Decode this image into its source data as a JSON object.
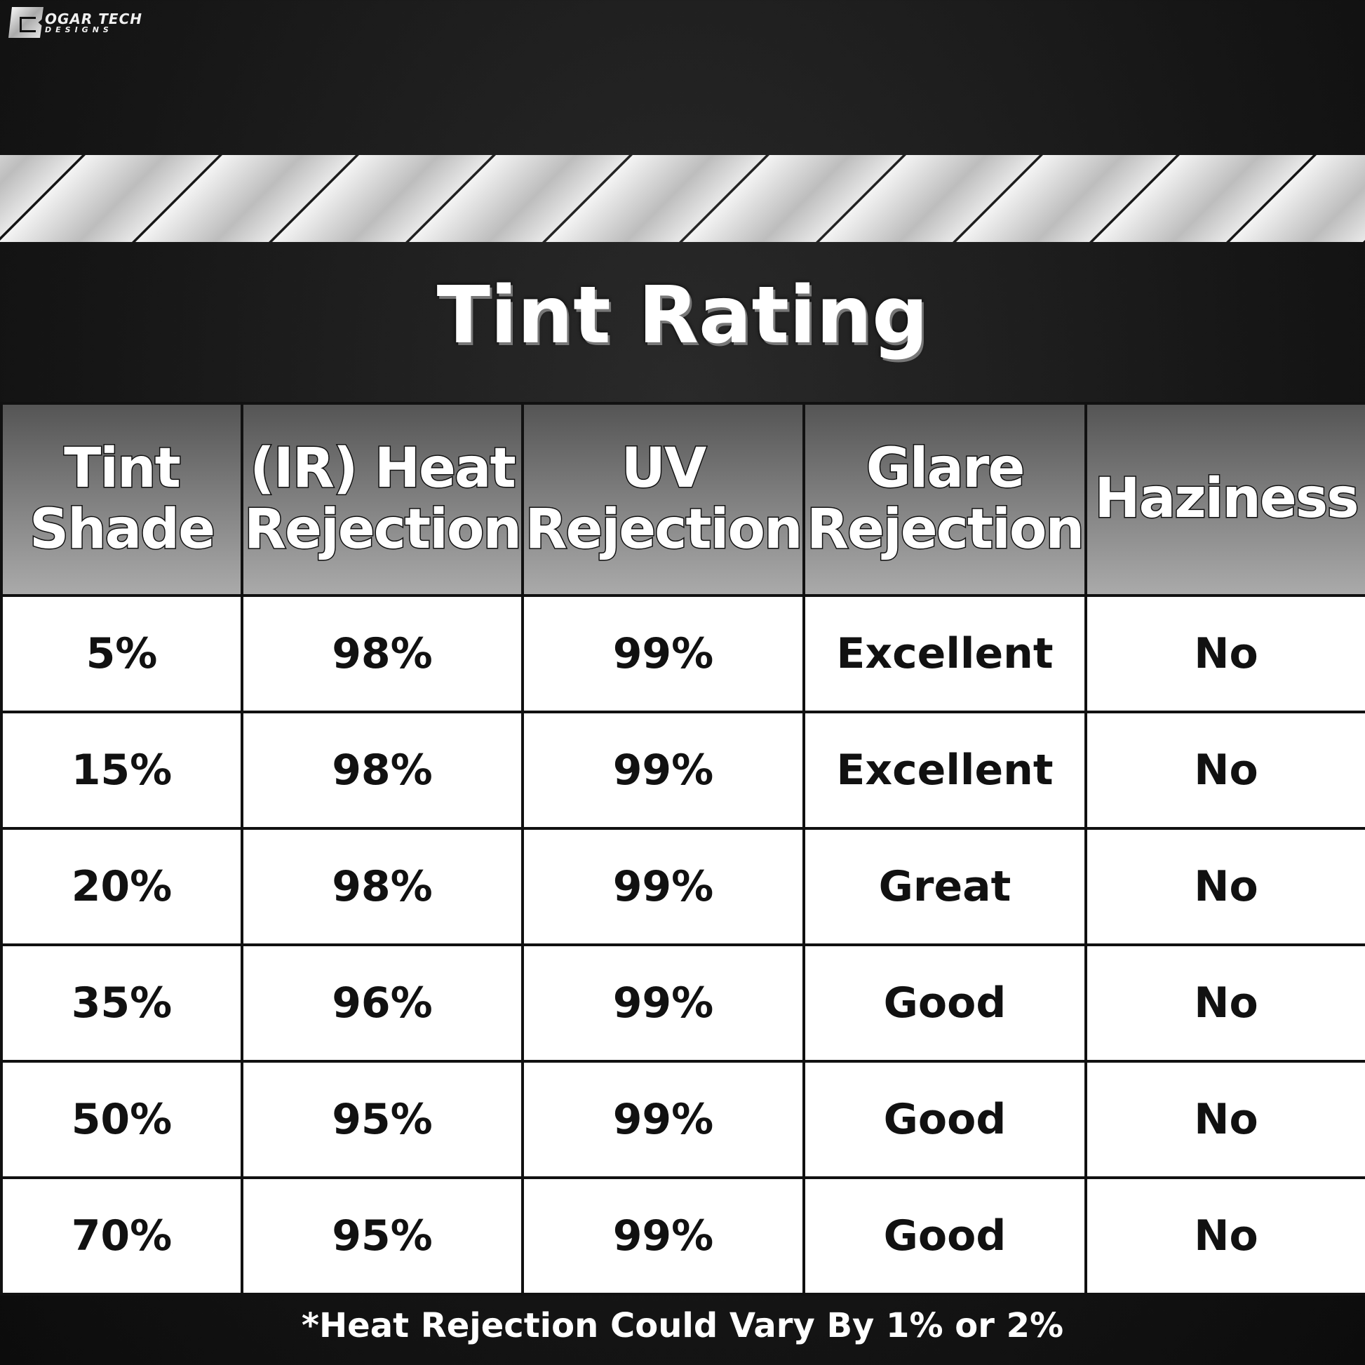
{
  "logo": {
    "line1": "OGAR TECH",
    "line2": "DESIGNS",
    "letter": "B"
  },
  "title": "Tint Rating",
  "table": {
    "headers": [
      [
        "Tint",
        "Shade"
      ],
      [
        "(IR) Heat",
        "Rejection"
      ],
      [
        "UV",
        "Rejection"
      ],
      [
        "Glare",
        "Rejection"
      ],
      [
        "Haziness",
        ""
      ]
    ],
    "rows": [
      [
        "5%",
        "98%",
        "99%",
        "Excellent",
        "No"
      ],
      [
        "15%",
        "98%",
        "99%",
        "Excellent",
        "No"
      ],
      [
        "20%",
        "98%",
        "99%",
        "Great",
        "No"
      ],
      [
        "35%",
        "96%",
        "99%",
        "Good",
        "No"
      ],
      [
        "50%",
        "95%",
        "99%",
        "Good",
        "No"
      ],
      [
        "70%",
        "95%",
        "99%",
        "Good",
        "No"
      ]
    ]
  },
  "footnote": "*Heat Rejection Could Vary By 1% or 2%"
}
